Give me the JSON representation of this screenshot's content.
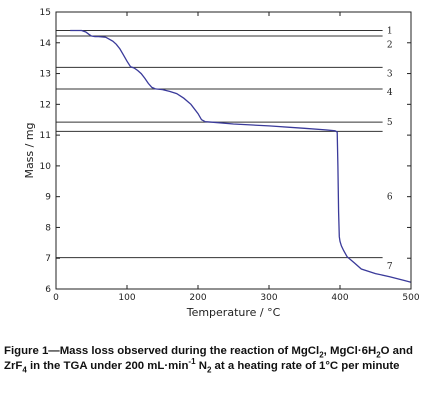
{
  "chart_data": {
    "type": "line",
    "xlabel": "Temperature / °C",
    "ylabel": "Mass / mg",
    "xlim": [
      0,
      500
    ],
    "ylim": [
      6,
      15
    ],
    "xticks": [
      0,
      100,
      200,
      300,
      400,
      500
    ],
    "yticks": [
      6,
      7,
      8,
      9,
      10,
      11,
      12,
      13,
      14,
      15
    ],
    "series": [
      {
        "color": "#3a3a9a",
        "x": [
          20,
          28,
          36,
          42,
          46,
          50,
          55,
          60,
          70,
          80,
          85,
          90,
          95,
          100,
          105,
          110,
          115,
          120,
          125,
          130,
          135,
          140,
          150,
          160,
          170,
          180,
          190,
          200,
          205,
          210,
          220,
          250,
          300,
          350,
          380,
          393,
          396,
          397,
          398,
          399,
          400,
          402,
          405,
          410,
          420,
          430,
          450,
          470,
          490,
          500
        ],
        "y": [
          14.4,
          14.4,
          14.4,
          14.35,
          14.28,
          14.22,
          14.2,
          14.2,
          14.18,
          14.05,
          13.95,
          13.8,
          13.6,
          13.4,
          13.22,
          13.18,
          13.1,
          13.0,
          12.85,
          12.68,
          12.55,
          12.5,
          12.48,
          12.42,
          12.35,
          12.2,
          12.0,
          11.7,
          11.5,
          11.44,
          11.42,
          11.36,
          11.3,
          11.22,
          11.17,
          11.14,
          11.1,
          10.0,
          8.5,
          7.7,
          7.55,
          7.4,
          7.25,
          7.05,
          6.85,
          6.65,
          6.5,
          6.4,
          6.28,
          6.22
        ]
      }
    ],
    "hlines": [
      14.4,
      14.22,
      13.2,
      12.5,
      11.42,
      11.12,
      7.02
    ],
    "zone_labels": [
      {
        "text": "1",
        "y": 14.4
      },
      {
        "text": "2",
        "y": 13.95
      },
      {
        "text": "3",
        "y": 13.0
      },
      {
        "text": "4",
        "y": 12.4
      },
      {
        "text": "5",
        "y": 11.42
      },
      {
        "text": "6",
        "y": 9.0
      },
      {
        "text": "7",
        "y": 6.75
      }
    ]
  },
  "caption": {
    "part1": "Figure 1—Mass loss observed during the reaction of MgCl",
    "sub1": "2",
    "part2": ", MgCl·6H",
    "sub2": "2",
    "part3": "O and ZrF",
    "sub3": "4",
    "part4": " in the TGA under 200 mL·min",
    "sup1": "-1",
    "part5": " N",
    "sub4": "2",
    "part6": " at a heating rate of 1°C per minute"
  }
}
